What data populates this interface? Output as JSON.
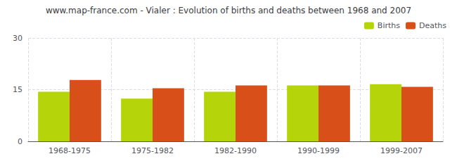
{
  "chart_data": {
    "type": "bar",
    "title": "www.map-france.com - Vialer : Evolution of births and deaths between 1968 and 2007",
    "categories": [
      "1968-1975",
      "1975-1982",
      "1982-1990",
      "1990-1999",
      "1999-2007"
    ],
    "series": [
      {
        "name": "Births",
        "color": "#b5d40a",
        "values": [
          14.4,
          12.4,
          14.4,
          16.2,
          16.6
        ]
      },
      {
        "name": "Deaths",
        "color": "#d94f1a",
        "values": [
          17.8,
          15.4,
          16.2,
          16.2,
          15.8
        ]
      }
    ],
    "ylim": [
      0,
      30
    ],
    "yticks": [
      0,
      15,
      30
    ],
    "grid": true,
    "legend": "upper right"
  }
}
